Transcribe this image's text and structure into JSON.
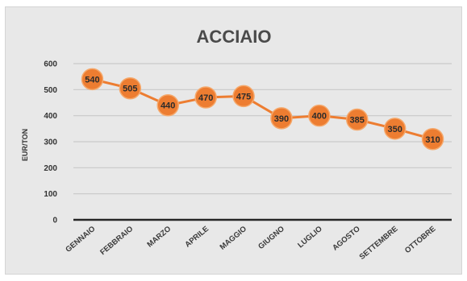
{
  "chart_data": {
    "type": "line",
    "title": "ACCIAIO",
    "ylabel": "EUR/TON",
    "xlabel": "",
    "categories": [
      "GENNAIO",
      "FEBBRAIO",
      "MARZO",
      "APRILE",
      "MAGGIO",
      "GIUGNO",
      "LUGLIO",
      "AGOSTO",
      "SETTEMBRE",
      "OTTOBRE"
    ],
    "values": [
      540,
      505,
      440,
      470,
      475,
      390,
      400,
      385,
      350,
      310
    ],
    "data_labels": [
      "540",
      "505",
      "440",
      "470",
      "475",
      "390",
      "400",
      "385",
      "350",
      "310"
    ],
    "ylim": [
      0,
      600
    ],
    "yticks": [
      0,
      100,
      200,
      300,
      400,
      500,
      600
    ],
    "ytick_labels": [
      "0",
      "100",
      "200",
      "300",
      "400",
      "500",
      "600"
    ],
    "grid": true,
    "legend": "none",
    "colors": {
      "line": "#ed7d31",
      "marker": "#ed7d31",
      "background": "#e8e8e8",
      "gridline": "#c9c9c9"
    }
  }
}
